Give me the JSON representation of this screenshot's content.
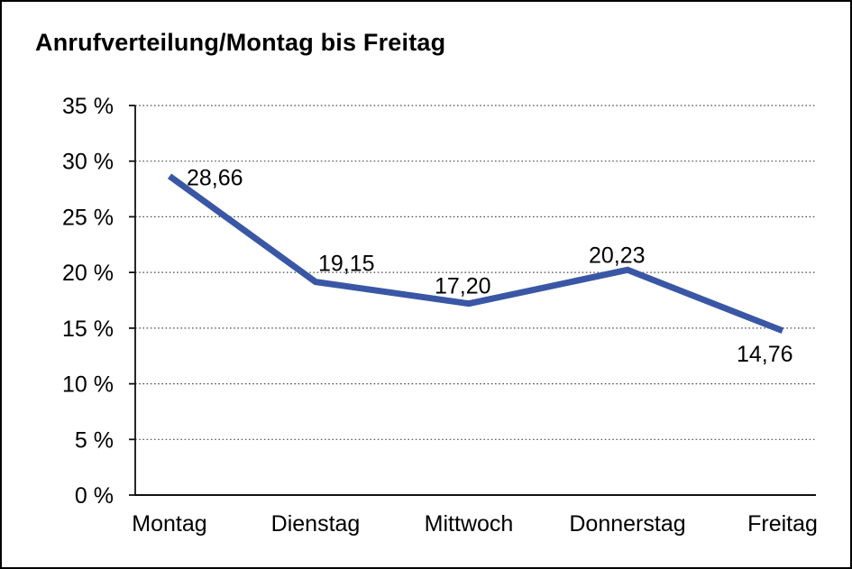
{
  "frame": {
    "background": "#FFFFFF",
    "border_color": "#000000"
  },
  "chart_data": {
    "type": "line",
    "title": "Anrufverteilung/Montag bis Freitag",
    "categories": [
      "Montag",
      "Dienstag",
      "Mittwoch",
      "Donnerstag",
      "Freitag"
    ],
    "values": [
      28.66,
      19.15,
      17.2,
      20.23,
      14.76
    ],
    "point_labels": [
      "28,66",
      "19,15",
      "17,20",
      "20,23",
      "14,76"
    ],
    "xlabel": "",
    "ylabel": "",
    "ylim": [
      0,
      35
    ],
    "ytick_step": 5,
    "ytick_labels": [
      "0 %",
      "5 %",
      "10 %",
      "15 %",
      "20 %",
      "25 %",
      "30 %",
      "35 %"
    ],
    "grid": "horizontal-dotted",
    "legend": "none",
    "line_color": "#3A57A5",
    "grid_color": "#4D4D4D",
    "axis_color": "#111111",
    "text_color": "#000000"
  }
}
